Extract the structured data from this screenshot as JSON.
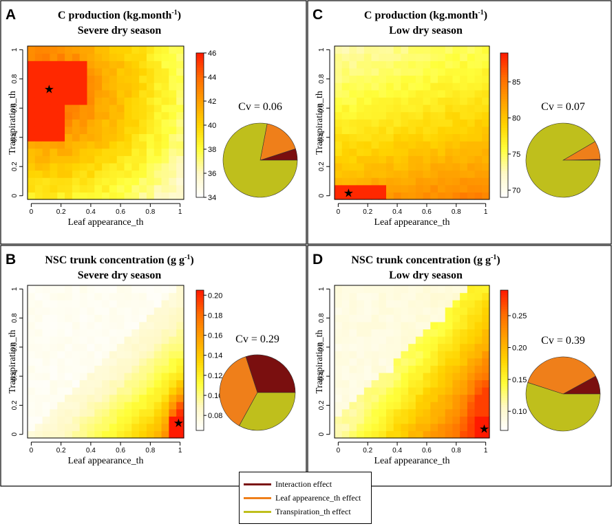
{
  "chart_data": [
    {
      "type": "heatmap",
      "panel_letter": "A",
      "title_line1": "C production (kg.month",
      "title_sup": "-1",
      "title_sup_close": ")",
      "title_line2": "Severe dry season",
      "xlabel": "Leaf appearance_th",
      "ylabel": "Transpiration_th",
      "xlim": [
        0,
        1
      ],
      "ylim": [
        0,
        1
      ],
      "xticks": [
        "0",
        "0.2",
        "0.4",
        "0.6",
        "0.8",
        "1"
      ],
      "yticks": [
        "0",
        "0.2",
        "0.4",
        "0.6",
        "0.8",
        "1"
      ],
      "grid_size": 21,
      "color_min": 34,
      "color_max": 46,
      "colorbar_ticks": [
        "34",
        "36",
        "38",
        "40",
        "42",
        "44",
        "46"
      ],
      "optimum": {
        "x": 0.12,
        "y": 0.73
      },
      "high_region": {
        "x_max": 0.35,
        "y_min": 0.4,
        "y_max": 0.9
      },
      "cv_label": "Cv = 0.06",
      "pie": {
        "interaction": 0.05,
        "leaf_appearance": 0.17,
        "transpiration": 0.78
      }
    },
    {
      "type": "heatmap",
      "panel_letter": "C",
      "title_line1": "C production (kg.month",
      "title_sup": "-1",
      "title_sup_close": ")",
      "title_line2": "Low dry season",
      "xlabel": "Leaf appearance_th",
      "ylabel": "Transpiration_th",
      "xlim": [
        0,
        1
      ],
      "ylim": [
        0,
        1
      ],
      "xticks": [
        "0",
        "0.2",
        "0.4",
        "0.6",
        "0.8",
        "1"
      ],
      "yticks": [
        "0",
        "0.2",
        "0.4",
        "0.6",
        "0.8",
        "1"
      ],
      "grid_size": 21,
      "color_min": 69,
      "color_max": 89,
      "colorbar_ticks": [
        "70",
        "75",
        "80",
        "85"
      ],
      "colorbar_tick_values": [
        70,
        75,
        80,
        85
      ],
      "optimum": {
        "x": 0.07,
        "y": 0.02
      },
      "cv_label": "Cv = 0.07",
      "pie": {
        "interaction": 0.004,
        "leaf_appearance": 0.08,
        "transpiration": 0.916
      }
    },
    {
      "type": "heatmap",
      "panel_letter": "B",
      "title_line1": "NSC trunk concentration (g g",
      "title_sup": "-1",
      "title_sup_close": ")",
      "title_line2": "Severe dry season",
      "xlabel": "Leaf appearance_th",
      "ylabel": "Transpiration_th",
      "xlim": [
        0,
        1
      ],
      "ylim": [
        0,
        1
      ],
      "xticks": [
        "0",
        "0.2",
        "0.4",
        "0.6",
        "0.8",
        "1"
      ],
      "yticks": [
        "0",
        "0.2",
        "0.4",
        "0.6",
        "0.8",
        "1"
      ],
      "grid_size": 21,
      "color_min": 0.065,
      "color_max": 0.205,
      "colorbar_ticks": [
        "0.08",
        "0.10",
        "0.12",
        "0.14",
        "0.16",
        "0.18",
        "0.20"
      ],
      "colorbar_tick_values": [
        0.08,
        0.1,
        0.12,
        0.14,
        0.16,
        0.18,
        0.2
      ],
      "optimum": {
        "x": 0.99,
        "y": 0.08
      },
      "cv_label": "Cv = 0.29",
      "pie": {
        "interaction": 0.3,
        "leaf_appearance": 0.37,
        "transpiration": 0.33
      }
    },
    {
      "type": "heatmap",
      "panel_letter": "D",
      "title_line1": "NSC trunk concentration (g g",
      "title_sup": "-1",
      "title_sup_close": ")",
      "title_line2": "Low dry season",
      "xlabel": "Leaf appearance_th",
      "ylabel": "Transpiration_th",
      "xlim": [
        0,
        1
      ],
      "ylim": [
        0,
        1
      ],
      "xticks": [
        "0",
        "0.2",
        "0.4",
        "0.6",
        "0.8",
        "1"
      ],
      "yticks": [
        "0",
        "0.2",
        "0.4",
        "0.6",
        "0.8",
        "1"
      ],
      "grid_size": 21,
      "color_min": 0.07,
      "color_max": 0.29,
      "colorbar_ticks": [
        "0.10",
        "0.15",
        "0.20",
        "0.25"
      ],
      "colorbar_tick_values": [
        0.1,
        0.15,
        0.2,
        0.25
      ],
      "optimum": {
        "x": 0.99,
        "y": 0.04
      },
      "cv_label": "Cv = 0.39",
      "pie": {
        "interaction": 0.08,
        "leaf_appearance": 0.37,
        "transpiration": 0.55
      }
    }
  ],
  "legend": {
    "items": [
      {
        "label": "Interaction effect",
        "color": "#7a0f0f"
      },
      {
        "label": "Leaf appearence_th effect",
        "color": "#ef7f1a"
      },
      {
        "label": "Transpiration_th effect",
        "color": "#bfbf1c"
      }
    ]
  },
  "colors": {
    "ramp": [
      "#ffffff",
      "#fff9c8",
      "#ffff3c",
      "#ffd400",
      "#ffa000",
      "#ff6a00",
      "#ff1a00"
    ],
    "pie_interaction": "#7a0f0f",
    "pie_leaf": "#ef7f1a",
    "pie_transpiration": "#bfbf1c"
  }
}
